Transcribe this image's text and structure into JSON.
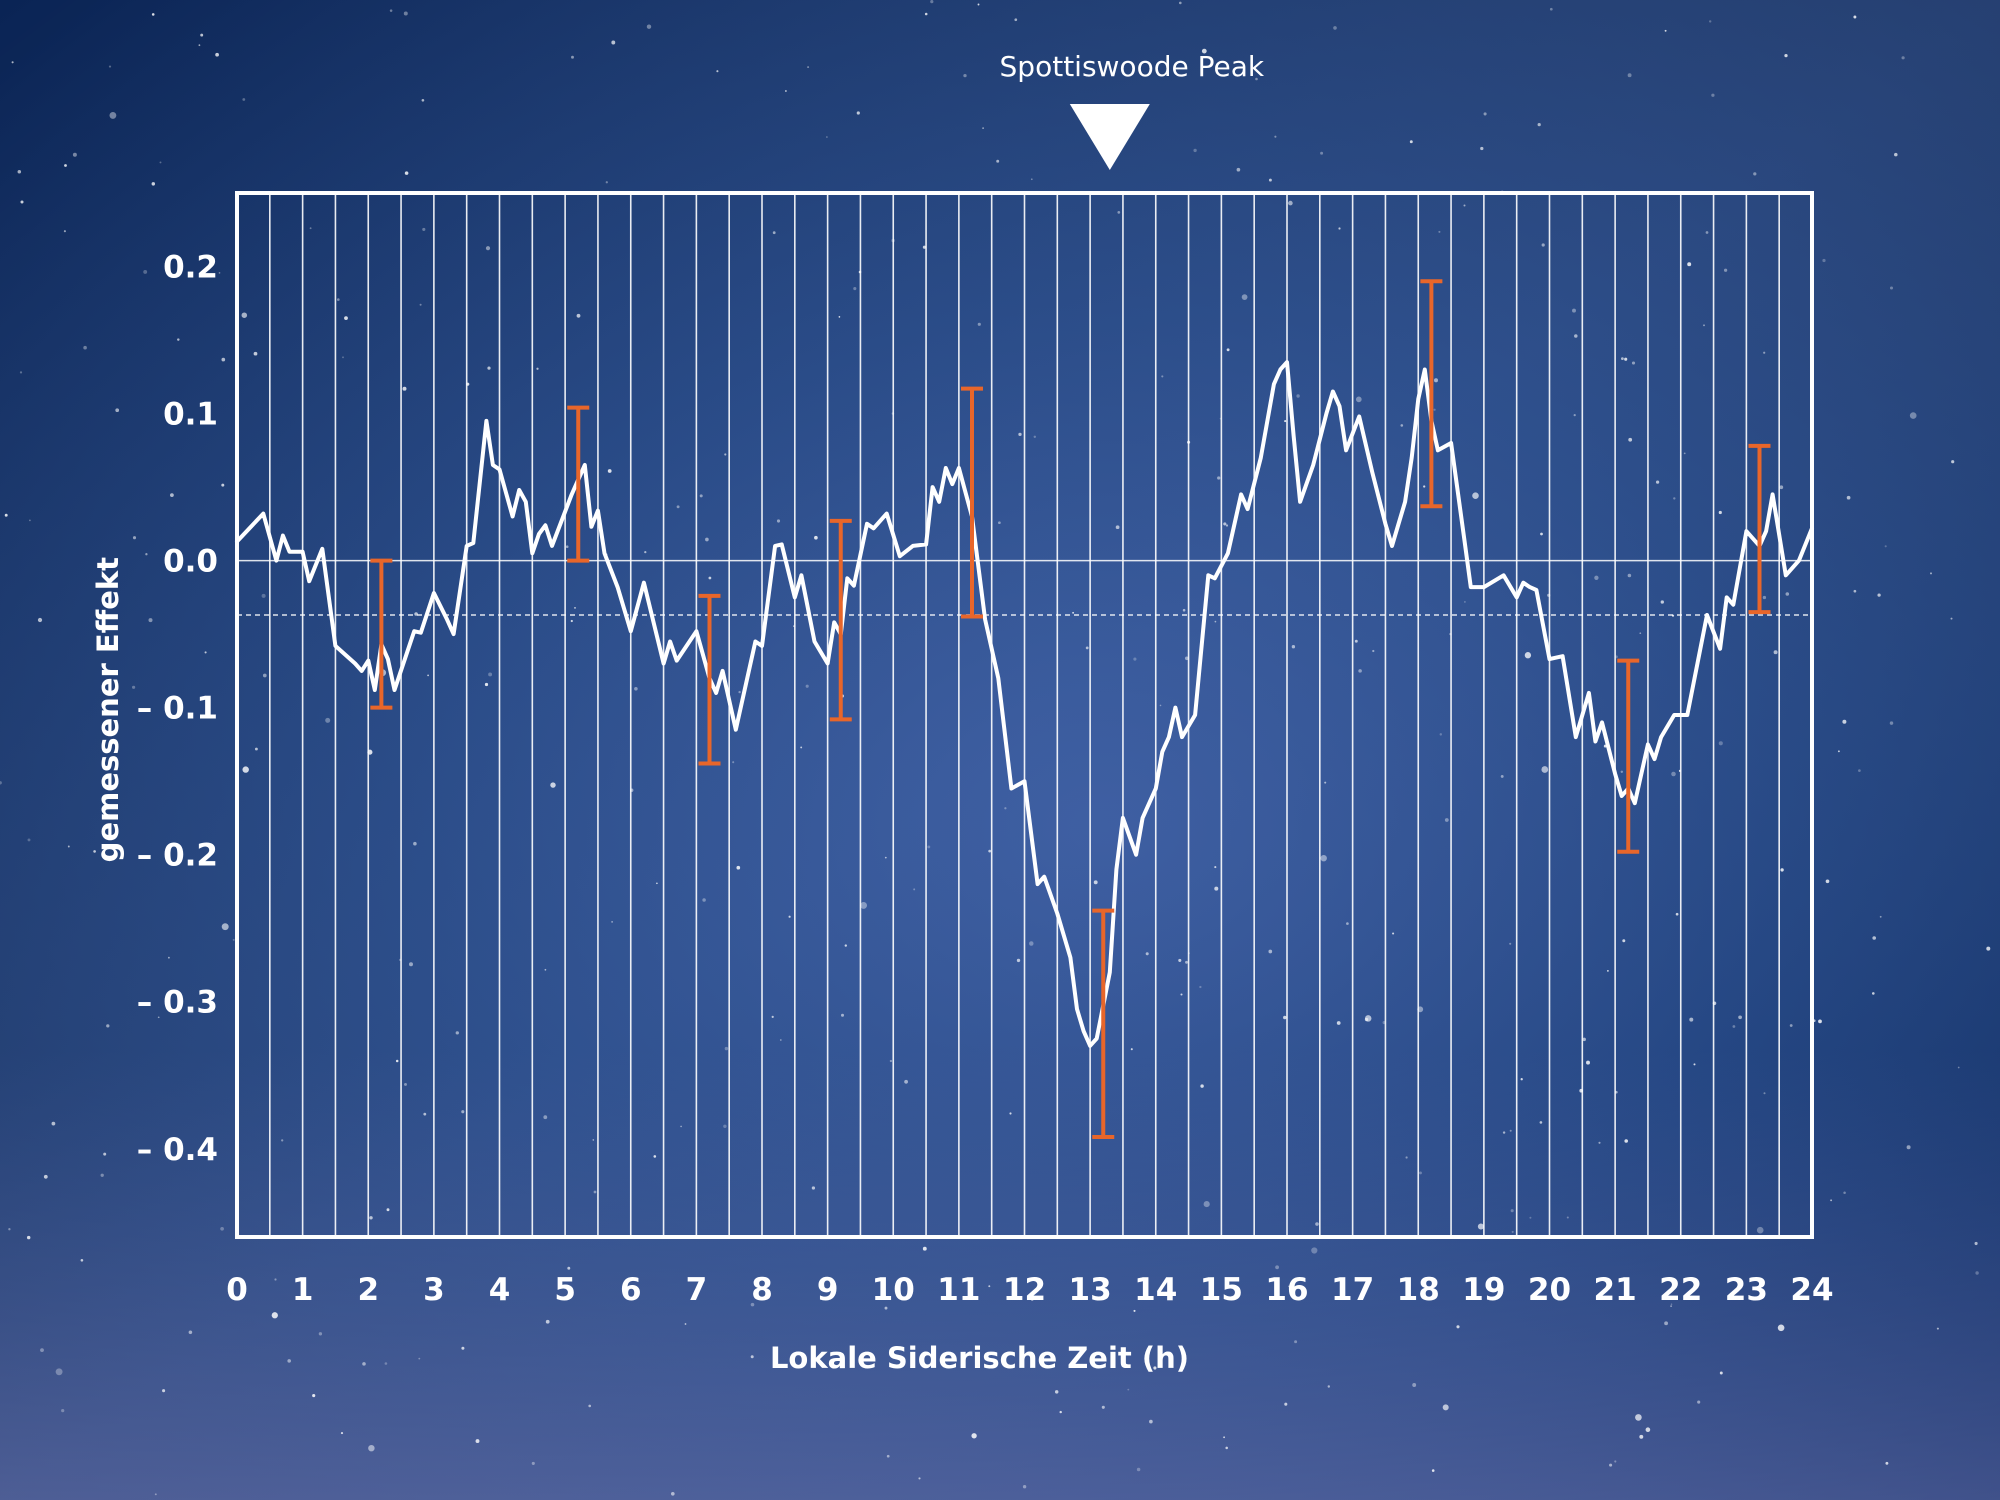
{
  "chart_data": {
    "type": "line",
    "title": "",
    "xlabel": "Lokale Siderische Zeit (h)",
    "ylabel": "gemessener Effekt",
    "xlim": [
      0,
      24
    ],
    "ylim": [
      -0.46,
      0.25
    ],
    "x_ticks": [
      "0",
      "1",
      "2",
      "3",
      "4",
      "5",
      "6",
      "7",
      "8",
      "9",
      "10",
      "11",
      "12",
      "13",
      "14",
      "15",
      "16",
      "17",
      "18",
      "19",
      "20",
      "21",
      "22",
      "23",
      "24"
    ],
    "y_ticks": [
      {
        "value": 0.2,
        "label": "0.2"
      },
      {
        "value": 0.1,
        "label": "0.1"
      },
      {
        "value": 0.0,
        "label": "0.0"
      },
      {
        "value": -0.1,
        "label": "– 0.1"
      },
      {
        "value": -0.2,
        "label": "– 0.2"
      },
      {
        "value": -0.3,
        "label": "– 0.3"
      },
      {
        "value": -0.4,
        "label": "– 0.4"
      }
    ],
    "grid": {
      "vertical_step_h": 0.5,
      "zero_line": 0.0,
      "dashed_reference": -0.037
    },
    "annotation": {
      "label": "Spottiswoode Peak",
      "x": 13.3,
      "shape": "down-triangle"
    },
    "series": [
      {
        "type": "line",
        "color": "#ffffff",
        "points": [
          [
            0.0,
            0.013
          ],
          [
            0.4,
            0.032
          ],
          [
            0.6,
            0.0
          ],
          [
            0.7,
            0.017
          ],
          [
            0.8,
            0.006
          ],
          [
            1.0,
            0.006
          ],
          [
            1.1,
            -0.014
          ],
          [
            1.3,
            0.008
          ],
          [
            1.5,
            -0.058
          ],
          [
            1.8,
            -0.07
          ],
          [
            1.9,
            -0.075
          ],
          [
            2.0,
            -0.068
          ],
          [
            2.1,
            -0.088
          ],
          [
            2.2,
            -0.057
          ],
          [
            2.3,
            -0.067
          ],
          [
            2.4,
            -0.088
          ],
          [
            2.7,
            -0.048
          ],
          [
            2.8,
            -0.049
          ],
          [
            3.0,
            -0.022
          ],
          [
            3.2,
            -0.04
          ],
          [
            3.3,
            -0.05
          ],
          [
            3.5,
            0.01
          ],
          [
            3.6,
            0.012
          ],
          [
            3.8,
            0.095
          ],
          [
            3.9,
            0.065
          ],
          [
            4.0,
            0.062
          ],
          [
            4.2,
            0.03
          ],
          [
            4.3,
            0.048
          ],
          [
            4.4,
            0.04
          ],
          [
            4.5,
            0.005
          ],
          [
            4.6,
            0.018
          ],
          [
            4.7,
            0.024
          ],
          [
            4.8,
            0.01
          ],
          [
            5.1,
            0.045
          ],
          [
            5.3,
            0.065
          ],
          [
            5.4,
            0.023
          ],
          [
            5.5,
            0.034
          ],
          [
            5.6,
            0.005
          ],
          [
            5.8,
            -0.018
          ],
          [
            6.0,
            -0.048
          ],
          [
            6.2,
            -0.015
          ],
          [
            6.5,
            -0.07
          ],
          [
            6.6,
            -0.055
          ],
          [
            6.7,
            -0.068
          ],
          [
            7.0,
            -0.048
          ],
          [
            7.2,
            -0.08
          ],
          [
            7.3,
            -0.09
          ],
          [
            7.4,
            -0.075
          ],
          [
            7.6,
            -0.115
          ],
          [
            7.9,
            -0.055
          ],
          [
            8.0,
            -0.058
          ],
          [
            8.2,
            0.01
          ],
          [
            8.3,
            0.011
          ],
          [
            8.5,
            -0.025
          ],
          [
            8.6,
            -0.01
          ],
          [
            8.8,
            -0.055
          ],
          [
            9.0,
            -0.07
          ],
          [
            9.1,
            -0.042
          ],
          [
            9.2,
            -0.05
          ],
          [
            9.3,
            -0.012
          ],
          [
            9.4,
            -0.017
          ],
          [
            9.6,
            0.025
          ],
          [
            9.7,
            0.022
          ],
          [
            9.9,
            0.032
          ],
          [
            10.1,
            0.003
          ],
          [
            10.3,
            0.01
          ],
          [
            10.5,
            0.011
          ],
          [
            10.6,
            0.05
          ],
          [
            10.7,
            0.04
          ],
          [
            10.8,
            0.063
          ],
          [
            10.9,
            0.052
          ],
          [
            11.0,
            0.063
          ],
          [
            11.2,
            0.03
          ],
          [
            11.4,
            -0.04
          ],
          [
            11.6,
            -0.08
          ],
          [
            11.8,
            -0.155
          ],
          [
            12.0,
            -0.15
          ],
          [
            12.2,
            -0.22
          ],
          [
            12.3,
            -0.215
          ],
          [
            12.5,
            -0.24
          ],
          [
            12.7,
            -0.27
          ],
          [
            12.8,
            -0.305
          ],
          [
            12.9,
            -0.32
          ],
          [
            13.0,
            -0.33
          ],
          [
            13.1,
            -0.325
          ],
          [
            13.3,
            -0.28
          ],
          [
            13.4,
            -0.21
          ],
          [
            13.5,
            -0.175
          ],
          [
            13.7,
            -0.2
          ],
          [
            13.8,
            -0.175
          ],
          [
            13.9,
            -0.165
          ],
          [
            14.0,
            -0.155
          ],
          [
            14.1,
            -0.13
          ],
          [
            14.2,
            -0.12
          ],
          [
            14.3,
            -0.1
          ],
          [
            14.4,
            -0.12
          ],
          [
            14.6,
            -0.105
          ],
          [
            14.8,
            -0.01
          ],
          [
            14.9,
            -0.012
          ],
          [
            15.1,
            0.005
          ],
          [
            15.3,
            0.045
          ],
          [
            15.4,
            0.035
          ],
          [
            15.6,
            0.07
          ],
          [
            15.8,
            0.12
          ],
          [
            15.9,
            0.13
          ],
          [
            16.0,
            0.135
          ],
          [
            16.1,
            0.085
          ],
          [
            16.2,
            0.04
          ],
          [
            16.4,
            0.065
          ],
          [
            16.6,
            0.1
          ],
          [
            16.7,
            0.115
          ],
          [
            16.8,
            0.105
          ],
          [
            16.9,
            0.075
          ],
          [
            17.1,
            0.098
          ],
          [
            17.3,
            0.06
          ],
          [
            17.5,
            0.025
          ],
          [
            17.6,
            0.01
          ],
          [
            17.8,
            0.04
          ],
          [
            17.9,
            0.07
          ],
          [
            18.0,
            0.11
          ],
          [
            18.1,
            0.13
          ],
          [
            18.2,
            0.095
          ],
          [
            18.3,
            0.075
          ],
          [
            18.5,
            0.08
          ],
          [
            18.7,
            0.015
          ],
          [
            18.8,
            -0.018
          ],
          [
            19.0,
            -0.018
          ],
          [
            19.3,
            -0.01
          ],
          [
            19.5,
            -0.025
          ],
          [
            19.6,
            -0.015
          ],
          [
            19.7,
            -0.018
          ],
          [
            19.8,
            -0.02
          ],
          [
            20.0,
            -0.067
          ],
          [
            20.2,
            -0.065
          ],
          [
            20.4,
            -0.12
          ],
          [
            20.6,
            -0.09
          ],
          [
            20.7,
            -0.123
          ],
          [
            20.8,
            -0.11
          ],
          [
            21.0,
            -0.145
          ],
          [
            21.1,
            -0.16
          ],
          [
            21.2,
            -0.155
          ],
          [
            21.3,
            -0.165
          ],
          [
            21.5,
            -0.125
          ],
          [
            21.6,
            -0.135
          ],
          [
            21.7,
            -0.12
          ],
          [
            21.9,
            -0.105
          ],
          [
            22.1,
            -0.105
          ],
          [
            22.4,
            -0.037
          ],
          [
            22.6,
            -0.06
          ],
          [
            22.7,
            -0.025
          ],
          [
            22.8,
            -0.03
          ],
          [
            23.0,
            0.02
          ],
          [
            23.2,
            0.01
          ],
          [
            23.3,
            0.02
          ],
          [
            23.4,
            0.045
          ],
          [
            23.6,
            -0.01
          ],
          [
            23.8,
            0.0
          ],
          [
            24.0,
            0.022
          ]
        ]
      }
    ],
    "error_bars": {
      "color": "#e8662a",
      "items": [
        {
          "x": 2.2,
          "low": -0.1,
          "high": 0.0
        },
        {
          "x": 5.2,
          "low": 0.0,
          "high": 0.104
        },
        {
          "x": 7.2,
          "low": -0.138,
          "high": -0.024
        },
        {
          "x": 9.2,
          "low": -0.108,
          "high": 0.027
        },
        {
          "x": 11.2,
          "low": -0.038,
          "high": 0.117
        },
        {
          "x": 13.2,
          "low": -0.392,
          "high": -0.238
        },
        {
          "x": 18.2,
          "low": 0.037,
          "high": 0.19
        },
        {
          "x": 21.2,
          "low": -0.198,
          "high": -0.068
        },
        {
          "x": 23.2,
          "low": -0.035,
          "high": 0.078
        }
      ]
    }
  }
}
